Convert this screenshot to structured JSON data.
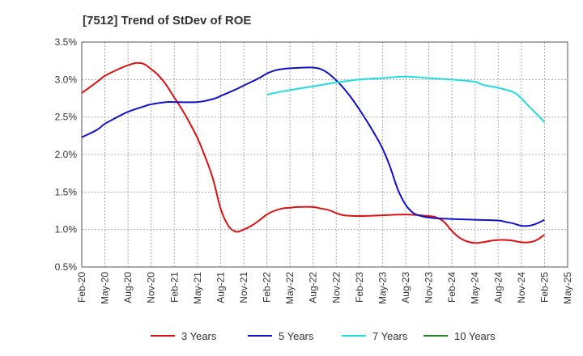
{
  "chart_data": {
    "type": "line",
    "title": "[7512]  Trend of StDev of ROE",
    "xlabel": "",
    "ylabel": "",
    "x_ticks": [
      "Feb-20",
      "May-20",
      "Aug-20",
      "Nov-20",
      "Feb-21",
      "May-21",
      "Aug-21",
      "Nov-21",
      "Feb-22",
      "May-22",
      "Aug-22",
      "Nov-22",
      "Feb-23",
      "May-23",
      "Aug-23",
      "Nov-23",
      "Feb-24",
      "May-24",
      "Aug-24",
      "Nov-24",
      "Feb-25",
      "May-25"
    ],
    "y_ticks": [
      "0.5%",
      "1.0%",
      "1.5%",
      "2.0%",
      "2.5%",
      "3.0%",
      "3.5%"
    ],
    "ylim": [
      0.5,
      3.5
    ],
    "grid": true,
    "legend_position": "bottom",
    "series": [
      {
        "name": "3 Years",
        "color": "#dd1111",
        "points": [
          [
            "Feb-20",
            2.82
          ],
          [
            "Apr-20",
            2.97
          ],
          [
            "May-20",
            3.05
          ],
          [
            "Jul-20",
            3.15
          ],
          [
            "Aug-20",
            3.19
          ],
          [
            "Sep-20",
            3.22
          ],
          [
            "Oct-20",
            3.21
          ],
          [
            "Nov-20",
            3.14
          ],
          [
            "Dec-20",
            3.05
          ],
          [
            "Jan-21",
            2.92
          ],
          [
            "Feb-21",
            2.76
          ],
          [
            "Mar-21",
            2.6
          ],
          [
            "Apr-21",
            2.42
          ],
          [
            "May-21",
            2.22
          ],
          [
            "Jun-21",
            1.97
          ],
          [
            "Jul-21",
            1.68
          ],
          [
            "Aug-21",
            1.28
          ],
          [
            "Sep-21",
            1.05
          ],
          [
            "Oct-21",
            0.97
          ],
          [
            "Nov-21",
            1.0
          ],
          [
            "Dec-21",
            1.05
          ],
          [
            "Jan-22",
            1.12
          ],
          [
            "Feb-22",
            1.2
          ],
          [
            "Mar-22",
            1.25
          ],
          [
            "Apr-22",
            1.28
          ],
          [
            "May-22",
            1.29
          ],
          [
            "Jun-22",
            1.3
          ],
          [
            "Aug-22",
            1.3
          ],
          [
            "Sep-22",
            1.28
          ],
          [
            "Oct-22",
            1.26
          ],
          [
            "Nov-22",
            1.22
          ],
          [
            "Dec-22",
            1.19
          ],
          [
            "Feb-23",
            1.18
          ],
          [
            "May-23",
            1.19
          ],
          [
            "Aug-23",
            1.2
          ],
          [
            "Nov-23",
            1.18
          ],
          [
            "Dec-23",
            1.16
          ],
          [
            "Jan-24",
            1.1
          ],
          [
            "Feb-24",
            0.98
          ],
          [
            "Mar-24",
            0.89
          ],
          [
            "Apr-24",
            0.84
          ],
          [
            "May-24",
            0.82
          ],
          [
            "Jun-24",
            0.83
          ],
          [
            "Jul-24",
            0.85
          ],
          [
            "Aug-24",
            0.86
          ],
          [
            "Sep-24",
            0.86
          ],
          [
            "Oct-24",
            0.85
          ],
          [
            "Nov-24",
            0.83
          ],
          [
            "Dec-24",
            0.83
          ],
          [
            "Jan-25",
            0.86
          ],
          [
            "Feb-25",
            0.93
          ]
        ]
      },
      {
        "name": "5 Years",
        "color": "#1111cc",
        "points": [
          [
            "Feb-20",
            2.23
          ],
          [
            "Apr-20",
            2.33
          ],
          [
            "May-20",
            2.41
          ],
          [
            "Jul-20",
            2.52
          ],
          [
            "Aug-20",
            2.57
          ],
          [
            "Oct-20",
            2.64
          ],
          [
            "Nov-20",
            2.67
          ],
          [
            "Jan-21",
            2.7
          ],
          [
            "Feb-21",
            2.7
          ],
          [
            "May-21",
            2.7
          ],
          [
            "Jul-21",
            2.74
          ],
          [
            "Aug-21",
            2.78
          ],
          [
            "Oct-21",
            2.87
          ],
          [
            "Nov-21",
            2.92
          ],
          [
            "Jan-22",
            3.02
          ],
          [
            "Feb-22",
            3.08
          ],
          [
            "Mar-22",
            3.12
          ],
          [
            "Apr-22",
            3.14
          ],
          [
            "May-22",
            3.15
          ],
          [
            "Jul-22",
            3.16
          ],
          [
            "Aug-22",
            3.16
          ],
          [
            "Sep-22",
            3.14
          ],
          [
            "Oct-22",
            3.08
          ],
          [
            "Nov-22",
            2.99
          ],
          [
            "Dec-22",
            2.88
          ],
          [
            "Jan-23",
            2.75
          ],
          [
            "Feb-23",
            2.6
          ],
          [
            "Mar-23",
            2.44
          ],
          [
            "Apr-23",
            2.27
          ],
          [
            "May-23",
            2.08
          ],
          [
            "Jun-23",
            1.83
          ],
          [
            "Jul-23",
            1.53
          ],
          [
            "Aug-23",
            1.33
          ],
          [
            "Sep-23",
            1.22
          ],
          [
            "Oct-23",
            1.18
          ],
          [
            "Nov-23",
            1.16
          ],
          [
            "Dec-23",
            1.15
          ],
          [
            "Feb-24",
            1.14
          ],
          [
            "May-24",
            1.13
          ],
          [
            "Aug-24",
            1.12
          ],
          [
            "Sep-24",
            1.1
          ],
          [
            "Oct-24",
            1.08
          ],
          [
            "Nov-24",
            1.05
          ],
          [
            "Dec-24",
            1.05
          ],
          [
            "Jan-25",
            1.08
          ],
          [
            "Feb-25",
            1.13
          ]
        ]
      },
      {
        "name": "7 Years",
        "color": "#22dddd",
        "points": [
          [
            "Feb-22",
            2.8
          ],
          [
            "May-22",
            2.86
          ],
          [
            "Aug-22",
            2.91
          ],
          [
            "Nov-22",
            2.96
          ],
          [
            "Feb-23",
            3.0
          ],
          [
            "May-23",
            3.02
          ],
          [
            "Aug-23",
            3.04
          ],
          [
            "Nov-23",
            3.02
          ],
          [
            "Feb-24",
            3.0
          ],
          [
            "May-24",
            2.97
          ],
          [
            "Jun-24",
            2.93
          ],
          [
            "Aug-24",
            2.89
          ],
          [
            "Oct-24",
            2.83
          ],
          [
            "Nov-24",
            2.75
          ],
          [
            "Dec-24",
            2.64
          ],
          [
            "Jan-25",
            2.54
          ],
          [
            "Feb-25",
            2.43
          ]
        ]
      },
      {
        "name": "10 Years",
        "color": "#228822",
        "points": []
      }
    ]
  }
}
